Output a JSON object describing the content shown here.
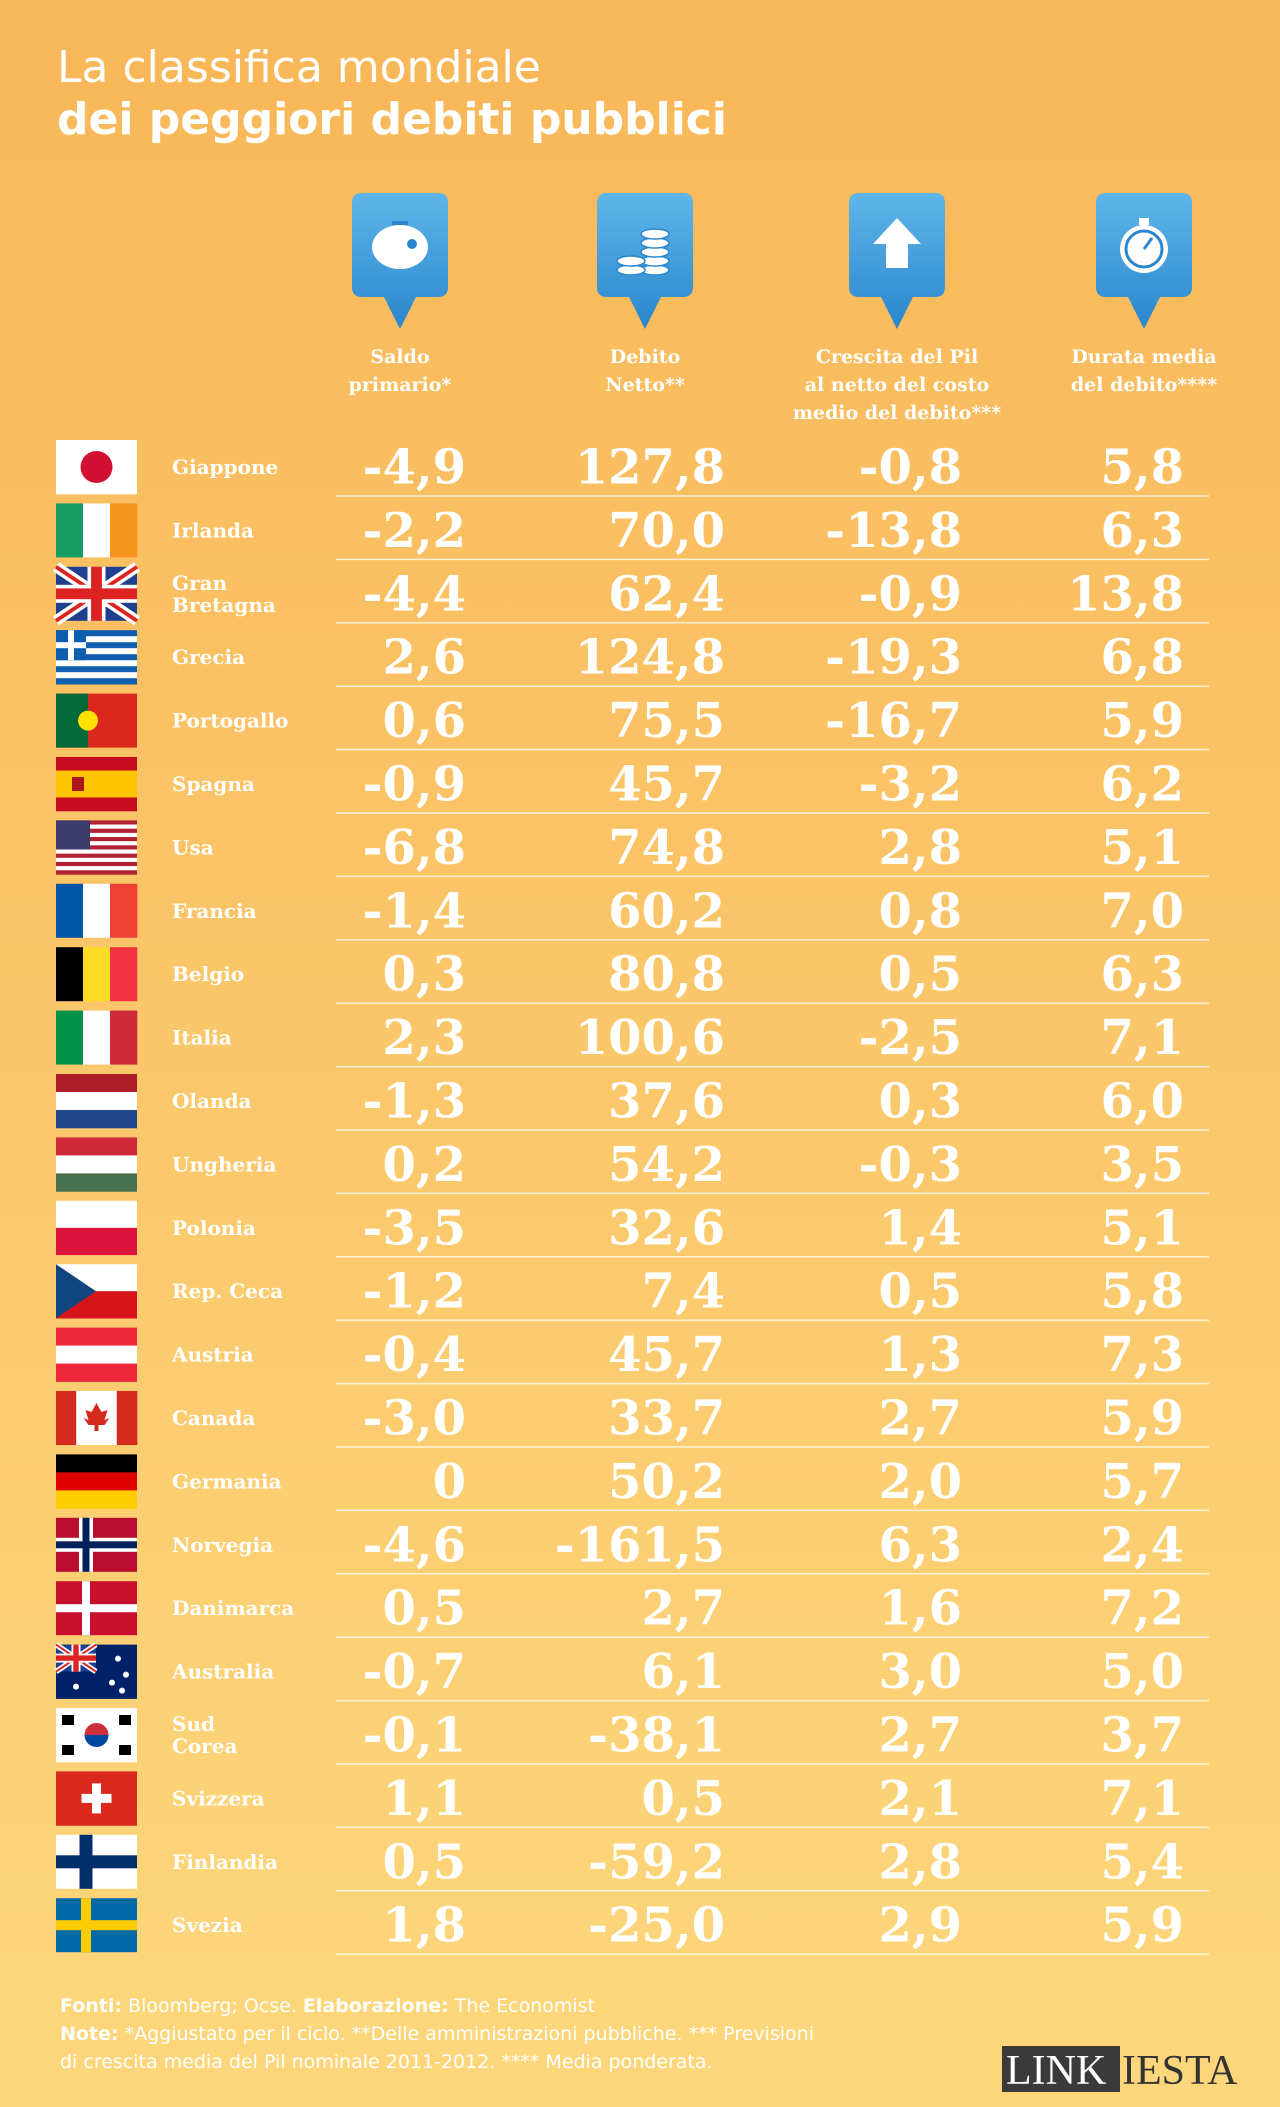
{
  "title": {
    "line1": "La classifica mondiale",
    "line2": "dei peggiori debiti pubblici"
  },
  "headers": [
    [
      "Saldo",
      "primario*"
    ],
    [
      "Debito",
      "Netto**"
    ],
    [
      "Crescita del Pil",
      "al netto del costo",
      "medio del debito***"
    ],
    [
      "Durata media",
      "del debito****"
    ]
  ],
  "rows": [
    {
      "country": [
        "Giappone"
      ],
      "values": [
        "-4,9",
        "127,8",
        "-0,8",
        "5,8"
      ]
    },
    {
      "country": [
        "Irlanda"
      ],
      "values": [
        "-2,2",
        "70,0",
        "-13,8",
        "6,3"
      ]
    },
    {
      "country": [
        "Gran",
        "Bretagna"
      ],
      "values": [
        "-4,4",
        "62,4",
        "-0,9",
        "13,8"
      ]
    },
    {
      "country": [
        "Grecia"
      ],
      "values": [
        "2,6",
        "124,8",
        "-19,3",
        "6,8"
      ]
    },
    {
      "country": [
        "Portogallo"
      ],
      "values": [
        "0,6",
        "75,5",
        "-16,7",
        "5,9"
      ]
    },
    {
      "country": [
        "Spagna"
      ],
      "values": [
        "-0,9",
        "45,7",
        "-3,2",
        "6,2"
      ]
    },
    {
      "country": [
        "Usa"
      ],
      "values": [
        "-6,8",
        "74,8",
        "2,8",
        "5,1"
      ]
    },
    {
      "country": [
        "Francia"
      ],
      "values": [
        "-1,4",
        "60,2",
        "0,8",
        "7,0"
      ]
    },
    {
      "country": [
        "Belgio"
      ],
      "values": [
        "0,3",
        "80,8",
        "0,5",
        "6,3"
      ]
    },
    {
      "country": [
        "Italia"
      ],
      "values": [
        "2,3",
        "100,6",
        "-2,5",
        "7,1"
      ]
    },
    {
      "country": [
        "Olanda"
      ],
      "values": [
        "-1,3",
        "37,6",
        "0,3",
        "6,0"
      ]
    },
    {
      "country": [
        "Ungheria"
      ],
      "values": [
        "0,2",
        "54,2",
        "-0,3",
        "3,5"
      ]
    },
    {
      "country": [
        "Polonia"
      ],
      "values": [
        "-3,5",
        "32,6",
        "1,4",
        "5,1"
      ]
    },
    {
      "country": [
        "Rep. Ceca"
      ],
      "values": [
        "-1,2",
        "7,4",
        "0,5",
        "5,8"
      ]
    },
    {
      "country": [
        "Austria"
      ],
      "values": [
        "-0,4",
        "45,7",
        "1,3",
        "7,3"
      ]
    },
    {
      "country": [
        "Canada"
      ],
      "values": [
        "-3,0",
        "33,7",
        "2,7",
        "5,9"
      ]
    },
    {
      "country": [
        "Germania"
      ],
      "values": [
        "0",
        "50,2",
        "2,0",
        "5,7"
      ]
    },
    {
      "country": [
        "Norvegia"
      ],
      "values": [
        "-4,6",
        "-161,5",
        "6,3",
        "2,4"
      ]
    },
    {
      "country": [
        "Danimarca"
      ],
      "values": [
        "0,5",
        "2,7",
        "1,6",
        "7,2"
      ]
    },
    {
      "country": [
        "Australia"
      ],
      "values": [
        "-0,7",
        "6,1",
        "3,0",
        "5,0"
      ]
    },
    {
      "country": [
        "Sud",
        "Corea"
      ],
      "values": [
        "-0,1",
        "-38,1",
        "2,7",
        "3,7"
      ]
    },
    {
      "country": [
        "Svizzera"
      ],
      "values": [
        "1,1",
        "0,5",
        "2,1",
        "7,1"
      ]
    },
    {
      "country": [
        "Finlandia"
      ],
      "values": [
        "0,5",
        "-59,2",
        "2,8",
        "5,4"
      ]
    },
    {
      "country": [
        "Svezia"
      ],
      "values": [
        "1,8",
        "-25,0",
        "2,9",
        "5,9"
      ]
    }
  ],
  "footer": {
    "sources_label": "Fonti:",
    "sources": "Bloomberg; Ocse.",
    "elab_label": "Elaborazione:",
    "elab": "The Economist",
    "notes_label": "Note:",
    "notes": [
      "*Aggiustato per il ciclo. **Delle amministrazioni pubbliche. *** Previsioni",
      "di crescita media del Pil nominale 2011-2012. **** Media ponderata."
    ]
  },
  "logo": {
    "part1": "LINK",
    "part2": "IESTA"
  }
}
